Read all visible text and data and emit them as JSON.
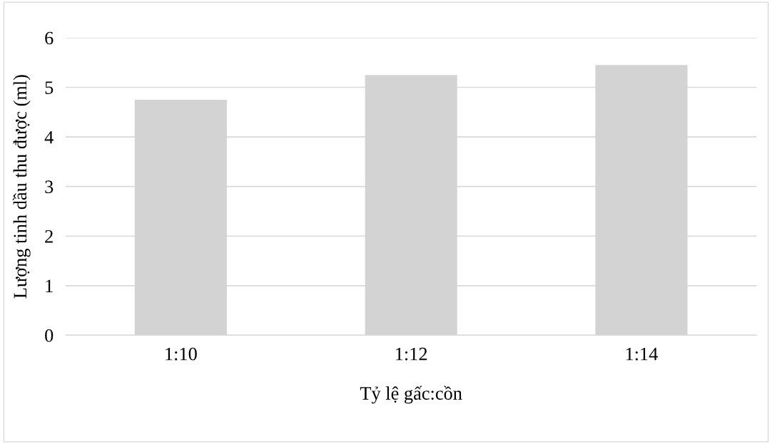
{
  "chart_data": {
    "type": "bar",
    "xlabel": "Tỷ lệ gấc:cồn",
    "ylabel": "Lượng tinh dầu thu được (ml)",
    "categories": [
      "1:10",
      "1:12",
      "1:14"
    ],
    "values": [
      4.75,
      5.25,
      5.45
    ],
    "color": "#d3d3d3",
    "ylim": [
      0,
      6
    ],
    "yticks": [
      0,
      1,
      2,
      3,
      4,
      5,
      6
    ],
    "grid": "y"
  }
}
